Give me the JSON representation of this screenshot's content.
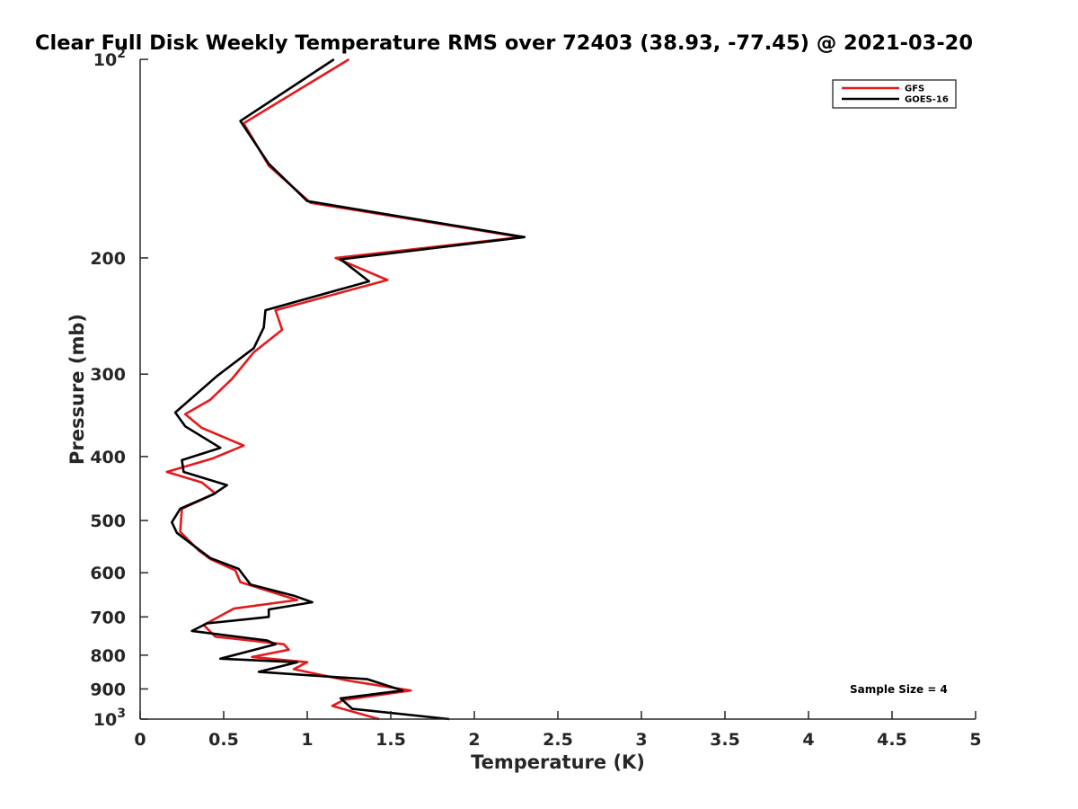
{
  "chart_data": {
    "type": "line",
    "title": "Clear Full Disk Weekly Temperature RMS over 72403 (38.93, -77.45) @ 2021-03-20",
    "xlabel": "Temperature (K)",
    "ylabel": "Pressure (mb)",
    "xlim": [
      0,
      5
    ],
    "ylim": [
      1000,
      100
    ],
    "yscale": "log",
    "y_reversed": true,
    "xticks": [
      0,
      0.5,
      1,
      1.5,
      2,
      2.5,
      3,
      3.5,
      4,
      4.5,
      5
    ],
    "xtick_labels": [
      "0",
      "0.5",
      "1",
      "1.5",
      "2",
      "2.5",
      "3",
      "3.5",
      "4",
      "4.5",
      "5"
    ],
    "yticks": [
      100,
      200,
      300,
      400,
      500,
      600,
      700,
      800,
      900,
      1000
    ],
    "ytick_labels": [
      {
        "base": "10",
        "exp": "2"
      },
      {
        "base": "200",
        "exp": ""
      },
      {
        "base": "300",
        "exp": ""
      },
      {
        "base": "400",
        "exp": ""
      },
      {
        "base": "500",
        "exp": ""
      },
      {
        "base": "600",
        "exp": ""
      },
      {
        "base": "700",
        "exp": ""
      },
      {
        "base": "800",
        "exp": ""
      },
      {
        "base": "900",
        "exp": ""
      },
      {
        "base": "10",
        "exp": "3"
      }
    ],
    "grid": false,
    "legend_position": "top-right",
    "annotation": "Sample Size = 4",
    "series": [
      {
        "name": "GFS",
        "color": "#e41a1c",
        "points": [
          {
            "x": 1.25,
            "p": 100
          },
          {
            "x": 0.62,
            "p": 125
          },
          {
            "x": 0.77,
            "p": 145
          },
          {
            "x": 1.02,
            "p": 165
          },
          {
            "x": 2.28,
            "p": 186
          },
          {
            "x": 1.17,
            "p": 200
          },
          {
            "x": 1.48,
            "p": 216
          },
          {
            "x": 0.81,
            "p": 240
          },
          {
            "x": 0.85,
            "p": 257
          },
          {
            "x": 0.68,
            "p": 278
          },
          {
            "x": 0.55,
            "p": 305
          },
          {
            "x": 0.42,
            "p": 328
          },
          {
            "x": 0.27,
            "p": 345
          },
          {
            "x": 0.37,
            "p": 362
          },
          {
            "x": 0.62,
            "p": 385
          },
          {
            "x": 0.43,
            "p": 403
          },
          {
            "x": 0.16,
            "p": 422
          },
          {
            "x": 0.37,
            "p": 438
          },
          {
            "x": 0.45,
            "p": 455
          },
          {
            "x": 0.25,
            "p": 480
          },
          {
            "x": 0.24,
            "p": 520
          },
          {
            "x": 0.35,
            "p": 555
          },
          {
            "x": 0.42,
            "p": 572
          },
          {
            "x": 0.57,
            "p": 595
          },
          {
            "x": 0.6,
            "p": 620
          },
          {
            "x": 0.94,
            "p": 660
          },
          {
            "x": 0.56,
            "p": 680
          },
          {
            "x": 0.38,
            "p": 720
          },
          {
            "x": 0.45,
            "p": 750
          },
          {
            "x": 0.86,
            "p": 770
          },
          {
            "x": 0.89,
            "p": 785
          },
          {
            "x": 0.67,
            "p": 805
          },
          {
            "x": 1.0,
            "p": 820
          },
          {
            "x": 0.92,
            "p": 840
          },
          {
            "x": 1.25,
            "p": 875
          },
          {
            "x": 1.62,
            "p": 905
          },
          {
            "x": 1.22,
            "p": 935
          },
          {
            "x": 1.15,
            "p": 955
          },
          {
            "x": 1.43,
            "p": 1000
          }
        ]
      },
      {
        "name": "GOES-16",
        "color": "#000000",
        "points": [
          {
            "x": 1.16,
            "p": 100
          },
          {
            "x": 0.6,
            "p": 124
          },
          {
            "x": 0.77,
            "p": 144
          },
          {
            "x": 1.0,
            "p": 164
          },
          {
            "x": 2.3,
            "p": 186
          },
          {
            "x": 1.2,
            "p": 201
          },
          {
            "x": 1.37,
            "p": 217
          },
          {
            "x": 0.75,
            "p": 240
          },
          {
            "x": 0.74,
            "p": 255
          },
          {
            "x": 0.68,
            "p": 274
          },
          {
            "x": 0.46,
            "p": 302
          },
          {
            "x": 0.21,
            "p": 343
          },
          {
            "x": 0.27,
            "p": 360
          },
          {
            "x": 0.48,
            "p": 388
          },
          {
            "x": 0.25,
            "p": 405
          },
          {
            "x": 0.26,
            "p": 422
          },
          {
            "x": 0.52,
            "p": 442
          },
          {
            "x": 0.44,
            "p": 456
          },
          {
            "x": 0.24,
            "p": 480
          },
          {
            "x": 0.19,
            "p": 503
          },
          {
            "x": 0.22,
            "p": 522
          },
          {
            "x": 0.33,
            "p": 548
          },
          {
            "x": 0.42,
            "p": 570
          },
          {
            "x": 0.59,
            "p": 592
          },
          {
            "x": 0.66,
            "p": 625
          },
          {
            "x": 0.92,
            "p": 650
          },
          {
            "x": 1.03,
            "p": 665
          },
          {
            "x": 0.77,
            "p": 682
          },
          {
            "x": 0.77,
            "p": 700
          },
          {
            "x": 0.4,
            "p": 716
          },
          {
            "x": 0.31,
            "p": 735
          },
          {
            "x": 0.76,
            "p": 760
          },
          {
            "x": 0.81,
            "p": 770
          },
          {
            "x": 0.48,
            "p": 810
          },
          {
            "x": 0.94,
            "p": 820
          },
          {
            "x": 0.71,
            "p": 848
          },
          {
            "x": 1.36,
            "p": 870
          },
          {
            "x": 1.57,
            "p": 905
          },
          {
            "x": 1.2,
            "p": 930
          },
          {
            "x": 1.27,
            "p": 965
          },
          {
            "x": 1.85,
            "p": 1000
          }
        ]
      }
    ]
  }
}
